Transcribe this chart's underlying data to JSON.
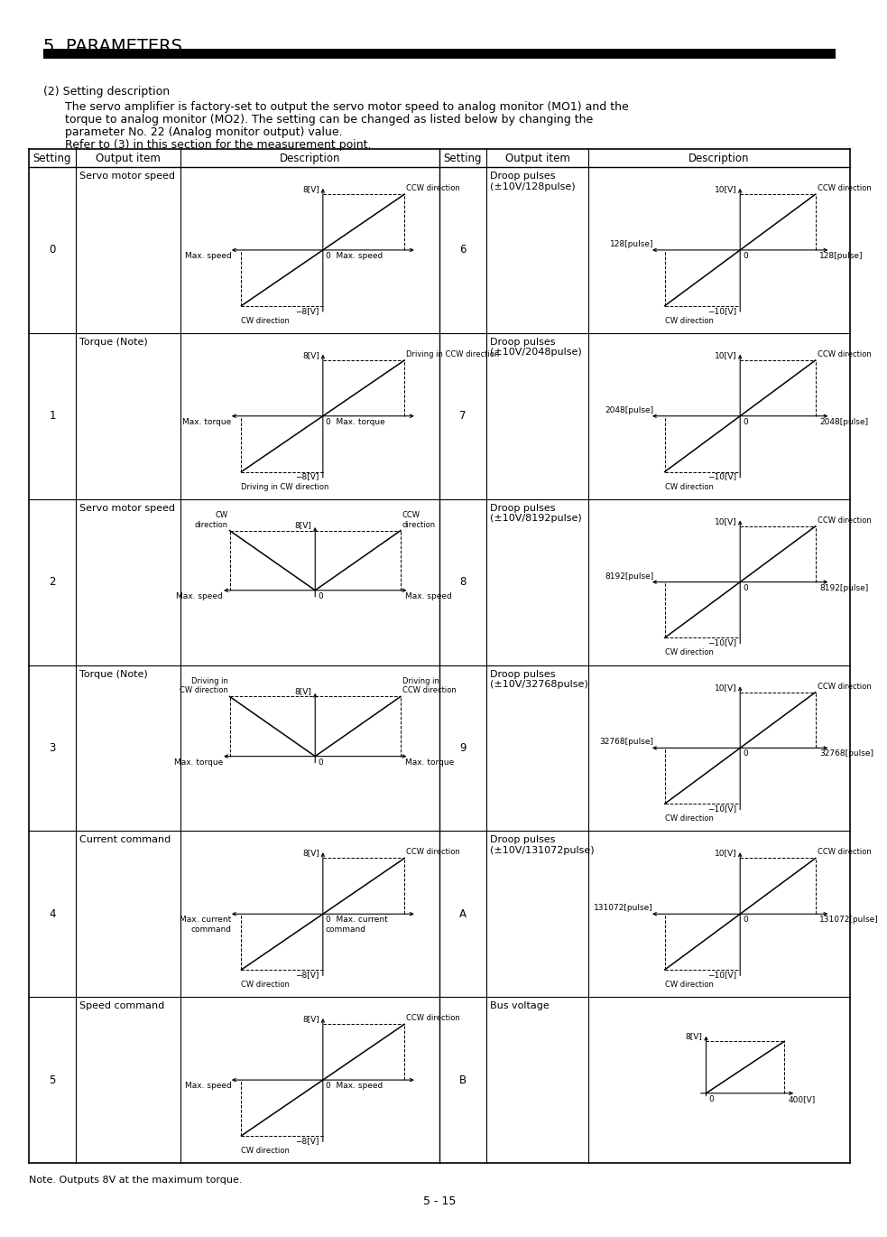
{
  "title": "5. PARAMETERS",
  "page_num": "5 - 15",
  "intro_lines": [
    "(2) Setting description",
    "The servo amplifier is factory-set to output the servo motor speed to analog monitor (MO1) and the",
    "torque to analog monitor (MO2). The setting can be changed as listed below by changing the",
    "parameter No. 22 (Analog monitor output) value.",
    "Refer to (3) in this section for the measurement point."
  ],
  "col_headers": [
    "Setting",
    "Output item",
    "Description"
  ],
  "rows_left": [
    {
      "setting": "0",
      "output_item": "Servo motor speed",
      "style": "symmetric",
      "y_pos": "8[V]",
      "y_neg": "−8[V]",
      "x_left": "Max. speed",
      "x_right": "Max. speed",
      "dir_top": "CCW direction",
      "dir_bot": "CW direction"
    },
    {
      "setting": "1",
      "output_item": "Torque (Note)",
      "style": "symmetric",
      "y_pos": "8[V]",
      "y_neg": "−8[V]",
      "x_left": "Max. torque",
      "x_right": "Max. torque",
      "dir_top": "Driving in CCW direction",
      "dir_bot": "Driving in CW direction"
    },
    {
      "setting": "2",
      "output_item": "Servo motor speed",
      "style": "v_shape",
      "y_pos": "8[V]",
      "x_left": "Max. speed",
      "x_right": "Max. speed",
      "dir_left": "CW\ndirection",
      "dir_right": "CCW\ndirection"
    },
    {
      "setting": "3",
      "output_item": "Torque (Note)",
      "style": "v_shape",
      "y_pos": "8[V]",
      "x_left": "Max. torque",
      "x_right": "Max. torque",
      "dir_left": "Driving in\nCW direction",
      "dir_right": "Driving in\nCCW direction"
    },
    {
      "setting": "4",
      "output_item": "Current command",
      "style": "symmetric",
      "y_pos": "8[V]",
      "y_neg": "−8[V]",
      "x_left": "Max. current\ncommand",
      "x_right": "Max. current\ncommand",
      "dir_top": "CCW direction",
      "dir_bot": "CW direction"
    },
    {
      "setting": "5",
      "output_item": "Speed command",
      "style": "symmetric",
      "y_pos": "8[V]",
      "y_neg": "−8[V]",
      "x_left": "Max. speed",
      "x_right": "Max. speed",
      "dir_top": "CCW direction",
      "dir_bot": "CW direction"
    }
  ],
  "rows_right": [
    {
      "setting": "6",
      "output_item": "Droop pulses\n(±10V/128pulse)",
      "style": "droop",
      "y_pos": "10[V]",
      "y_neg": "−10[V]",
      "x_left": "128[pulse]",
      "x_right": "128[pulse]",
      "dir_top": "CCW direction",
      "dir_bot": "CW direction"
    },
    {
      "setting": "7",
      "output_item": "Droop pulses\n(±10V/2048pulse)",
      "style": "droop",
      "y_pos": "10[V]",
      "y_neg": "−10[V]",
      "x_left": "2048[pulse]",
      "x_right": "2048[pulse]",
      "dir_top": "CCW direction",
      "dir_bot": "CW direction"
    },
    {
      "setting": "8",
      "output_item": "Droop pulses\n(±10V/8192pulse)",
      "style": "droop",
      "y_pos": "10[V]",
      "y_neg": "−10[V]",
      "x_left": "8192[pulse]",
      "x_right": "8192[pulse]",
      "dir_top": "CCW direction",
      "dir_bot": "CW direction"
    },
    {
      "setting": "9",
      "output_item": "Droop pulses\n(±10V/32768pulse)",
      "style": "droop",
      "y_pos": "10[V]",
      "y_neg": "−10[V]",
      "x_left": "32768[pulse]",
      "x_right": "32768[pulse]",
      "dir_top": "CCW direction",
      "dir_bot": "CW direction"
    },
    {
      "setting": "A",
      "output_item": "Droop pulses\n(±10V/131072pulse)",
      "style": "droop",
      "y_pos": "10[V]",
      "y_neg": "−10[V]",
      "x_left": "131072[pulse]",
      "x_right": "131072[pulse]",
      "dir_top": "CCW direction",
      "dir_bot": "CW direction"
    },
    {
      "setting": "B",
      "output_item": "Bus voltage",
      "style": "bus",
      "y_pos": "8[V]",
      "x_right": "400[V]",
      "zero": "0"
    }
  ],
  "note": "Note. Outputs 8V at the maximum torque."
}
